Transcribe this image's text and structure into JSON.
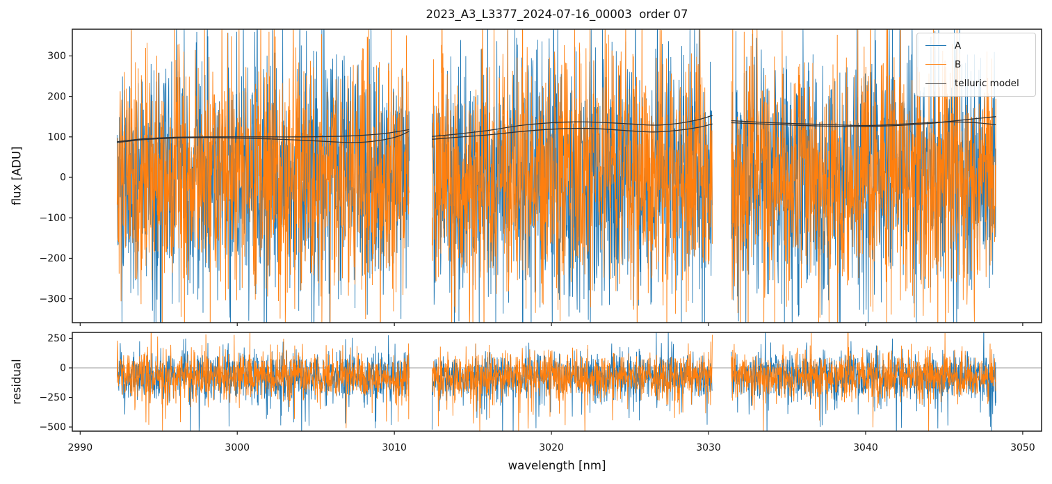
{
  "figure": {
    "title": "2023_A3_L3377_2024-07-16_00003  order 07",
    "background": "#ffffff"
  },
  "chart_data": {
    "type": "line",
    "title": "2023_A3_L3377_2024-07-16_00003  order 07",
    "xlabel": "wavelength [nm]",
    "xlim": [
      2989.5,
      3051.2
    ],
    "xticks": [
      2990,
      3000,
      3010,
      3020,
      3030,
      3040,
      3050
    ],
    "xtick_labels": [
      "2990",
      "3000",
      "3010",
      "3020",
      "3030",
      "3040",
      "3050"
    ],
    "grid": false,
    "legend_position": "upper right",
    "panels": [
      {
        "name": "flux",
        "ylabel": "flux [ADU]",
        "ylim": [
          -359,
          366
        ],
        "yticks": [
          300,
          200,
          100,
          0,
          -100,
          -200,
          -300
        ],
        "ytick_labels": [
          "300",
          "200",
          "100",
          "0",
          "−100",
          "−200",
          "−300"
        ],
        "zero_line": false
      },
      {
        "name": "residual",
        "ylabel": "residual",
        "ylim": [
          -535,
          300
        ],
        "yticks": [
          250,
          0,
          -250,
          -500
        ],
        "ytick_labels": [
          "250",
          "0",
          "−250",
          "−500"
        ],
        "zero_line": true,
        "zero_line_color": "#999999"
      }
    ],
    "segments_nm": [
      [
        2992.35,
        3010.95
      ],
      [
        3012.4,
        3030.25
      ],
      [
        3031.45,
        3048.3
      ]
    ],
    "series": [
      {
        "name": "A",
        "color": "#1f77b4",
        "flux_noise": {
          "mean": 0,
          "std": 155
        },
        "residual_noise": {
          "mean": -70,
          "std": 100
        }
      },
      {
        "name": "B",
        "color": "#ff7f0e",
        "flux_noise": {
          "mean": 0,
          "std": 155
        },
        "residual_noise": {
          "mean": -70,
          "std": 100
        }
      }
    ],
    "residual_spikes": {
      "pos_prob": 0.012,
      "pos_min": 160,
      "pos_range": 140,
      "neg_prob": 0.03,
      "neg_min": 140,
      "neg_range": 260
    },
    "legend": [
      {
        "label": "A",
        "color": "#1f77b4"
      },
      {
        "label": "B",
        "color": "#ff7f0e"
      },
      {
        "label": "telluric model",
        "color": "#3a3a3a"
      }
    ],
    "telluric_model": {
      "color": "#333333",
      "lines": [
        {
          "name": "telluric-A",
          "segments": [
            [
              [
                2992.35,
                88
              ],
              [
                2994,
                95
              ],
              [
                2996,
                99
              ],
              [
                2998,
                100
              ],
              [
                3000,
                100
              ],
              [
                3002,
                100
              ],
              [
                3004,
                100
              ],
              [
                3006,
                101
              ],
              [
                3008,
                104
              ],
              [
                3009.5,
                109
              ],
              [
                3010.95,
                118
              ]
            ],
            [
              [
                3012.4,
                101
              ],
              [
                3014,
                107
              ],
              [
                3016,
                116
              ],
              [
                3018,
                128
              ],
              [
                3020,
                135
              ],
              [
                3021.5,
                137
              ],
              [
                3023,
                136
              ],
              [
                3025,
                132
              ],
              [
                3026.5,
                129
              ],
              [
                3028,
                133
              ],
              [
                3029.3,
                142
              ],
              [
                3030.25,
                153
              ]
            ],
            [
              [
                3031.45,
                135
              ],
              [
                3034,
                131
              ],
              [
                3037,
                127
              ],
              [
                3040,
                126
              ],
              [
                3042,
                128
              ],
              [
                3044,
                133
              ],
              [
                3045.5,
                139
              ],
              [
                3047,
                145
              ],
              [
                3048.3,
                150
              ]
            ]
          ]
        },
        {
          "name": "telluric-B",
          "segments": [
            [
              [
                2992.35,
                86
              ],
              [
                2994,
                93
              ],
              [
                2996,
                97
              ],
              [
                2998,
                98
              ],
              [
                3000,
                97
              ],
              [
                3002,
                95
              ],
              [
                3004,
                92
              ],
              [
                3006,
                88
              ],
              [
                3007.5,
                86
              ],
              [
                3009,
                91
              ],
              [
                3010.2,
                101
              ],
              [
                3010.95,
                114
              ]
            ],
            [
              [
                3012.4,
                94
              ],
              [
                3014,
                99
              ],
              [
                3016,
                105
              ],
              [
                3018,
                113
              ],
              [
                3020,
                119
              ],
              [
                3021.5,
                121
              ],
              [
                3023,
                120
              ],
              [
                3025,
                115
              ],
              [
                3026.5,
                112
              ],
              [
                3028,
                116
              ],
              [
                3029.3,
                123
              ],
              [
                3030.25,
                132
              ]
            ],
            [
              [
                3031.45,
                140
              ],
              [
                3034,
                135
              ],
              [
                3037,
                131
              ],
              [
                3040,
                128
              ],
              [
                3042,
                131
              ],
              [
                3044,
                135
              ],
              [
                3045.5,
                137
              ],
              [
                3047,
                135
              ],
              [
                3048.3,
                130
              ]
            ]
          ]
        }
      ]
    },
    "noise_seed": 1337,
    "points_per_nm": 55
  }
}
